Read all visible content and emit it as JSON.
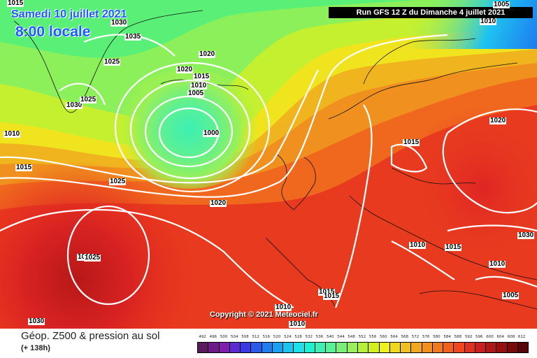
{
  "header": {
    "date": "Samedi 10 juillet 2021",
    "time": "8:00 locale",
    "run": "Run GFS 12 Z du Dimanche 4 juillet 2021"
  },
  "copyright": "Copyright © 2021 Meteociel.fr",
  "footer": {
    "title": "Géop. Z500 & pression au sol",
    "subtitle": "(+ 138h)"
  },
  "isobar_labels": [
    "1015",
    "1030",
    "1035",
    "1025",
    "1030",
    "1025",
    "1020",
    "1020",
    "1015",
    "1010",
    "1005",
    "1000",
    "1010",
    "1015",
    "1025",
    "1020",
    "1005",
    "1010",
    "1020",
    "1015",
    "1010",
    "1015",
    "1010",
    "1030",
    "1010",
    "1015",
    "1015",
    "1025",
    "1010",
    "1010",
    "1030",
    "1005"
  ],
  "scale": {
    "labels": [
      "492",
      "496",
      "500",
      "504",
      "508",
      "512",
      "516",
      "520",
      "524",
      "528",
      "532",
      "536",
      "540",
      "544",
      "548",
      "552",
      "556",
      "560",
      "564",
      "568",
      "572",
      "576",
      "580",
      "584",
      "588",
      "592",
      "596",
      "600",
      "604",
      "608",
      "612"
    ],
    "colors": [
      "#5a1a5e",
      "#6e1a86",
      "#7d1ead",
      "#5a2ad2",
      "#3a3ae0",
      "#2a5ae8",
      "#1e7ef0",
      "#1ea0f0",
      "#1ec4f0",
      "#1ee0e8",
      "#1ef0d2",
      "#3cf0b4",
      "#5af096",
      "#78f078",
      "#96f05a",
      "#b4f03c",
      "#d2f01e",
      "#f0f01e",
      "#f0d81e",
      "#f0c01e",
      "#f0a81e",
      "#f0901e",
      "#f0781e",
      "#f0601e",
      "#f0481e",
      "#e03020",
      "#c82020",
      "#b01818",
      "#961010",
      "#780a0a",
      "#5a0505"
    ]
  },
  "colors": {
    "title_blue": "#1a5cff"
  }
}
